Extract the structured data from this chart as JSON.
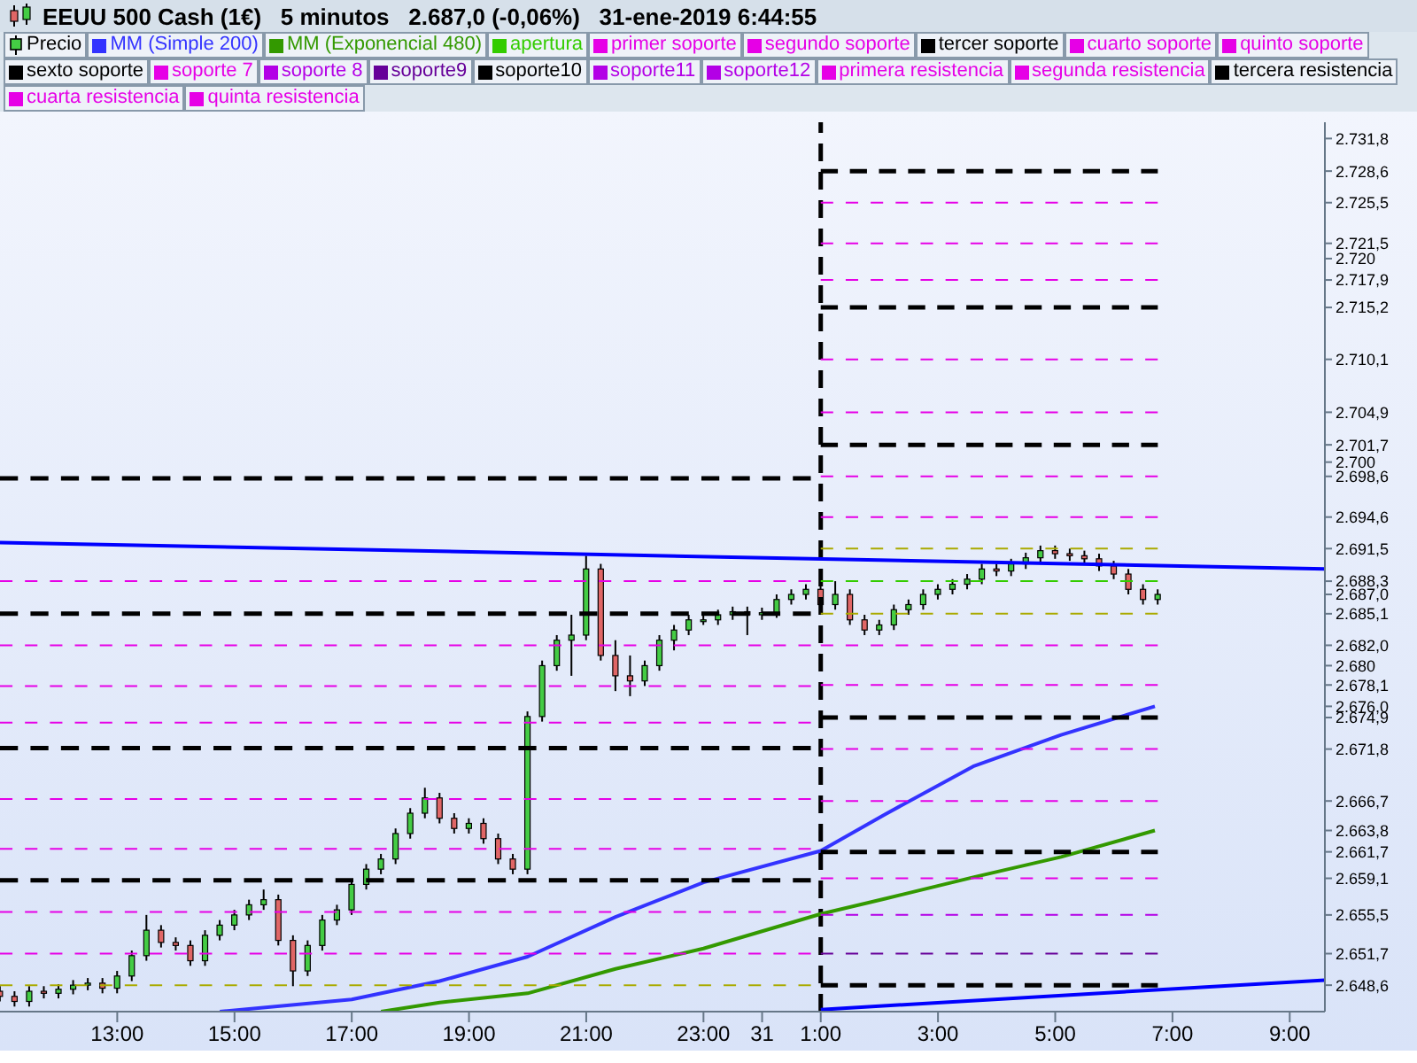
{
  "chart_data": {
    "type": "candlestick",
    "title": "EEUU 500 Cash (1€)   5 minutos   2.687,0 (-0,06%)   31-ene-2019 6:44:55",
    "xlim": [
      "2019-01-30T11:00",
      "2019-01-31T09:36"
    ],
    "xticks": [
      {
        "value": "2019-01-30T13:00",
        "label": "13:00"
      },
      {
        "value": "2019-01-30T15:00",
        "label": "15:00"
      },
      {
        "value": "2019-01-30T17:00",
        "label": "17:00"
      },
      {
        "value": "2019-01-30T19:00",
        "label": "19:00"
      },
      {
        "value": "2019-01-30T21:00",
        "label": "21:00"
      },
      {
        "value": "2019-01-30T23:00",
        "label": "23:00"
      },
      {
        "value": "2019-01-31T00:00",
        "label": "31"
      },
      {
        "value": "2019-01-31T01:00",
        "label": "1:00"
      },
      {
        "value": "2019-01-31T03:00",
        "label": "3:00"
      },
      {
        "value": "2019-01-31T05:00",
        "label": "5:00"
      },
      {
        "value": "2019-01-31T07:00",
        "label": "7:00"
      },
      {
        "value": "2019-01-31T09:00",
        "label": "9:00"
      }
    ],
    "ylim": [
      2646.0,
      2733.4
    ],
    "yticks": [
      {
        "value": 2731.8,
        "label": "2.731,8"
      },
      {
        "value": 2728.6,
        "label": "2.728,6"
      },
      {
        "value": 2725.5,
        "label": "2.725,5"
      },
      {
        "value": 2721.5,
        "label": "2.721,5"
      },
      {
        "value": 2720,
        "label": "2.720"
      },
      {
        "value": 2717.9,
        "label": "2.717,9"
      },
      {
        "value": 2715.2,
        "label": "2.715,2"
      },
      {
        "value": 2710.1,
        "label": "2.710,1"
      },
      {
        "value": 2704.9,
        "label": "2.704,9"
      },
      {
        "value": 2701.7,
        "label": "2.701,7"
      },
      {
        "value": 2700,
        "label": "2.700"
      },
      {
        "value": 2698.6,
        "label": "2.698,6"
      },
      {
        "value": 2694.6,
        "label": "2.694,6"
      },
      {
        "value": 2691.5,
        "label": "2.691,5"
      },
      {
        "value": 2688.3,
        "label": "2.688,3"
      },
      {
        "value": 2687.0,
        "label": "2.687,0"
      },
      {
        "value": 2685.1,
        "label": "2.685,1"
      },
      {
        "value": 2682.0,
        "label": "2.682,0"
      },
      {
        "value": 2680,
        "label": "2.680"
      },
      {
        "value": 2678.1,
        "label": "2.678,1"
      },
      {
        "value": 2676.0,
        "label": "2.676,0"
      },
      {
        "value": 2674.9,
        "label": "2.674,9"
      },
      {
        "value": 2671.8,
        "label": "2.671,8"
      },
      {
        "value": 2666.7,
        "label": "2.666,7"
      },
      {
        "value": 2663.8,
        "label": "2.663,8"
      },
      {
        "value": 2661.7,
        "label": "2.661,7"
      },
      {
        "value": 2659.1,
        "label": "2.659,1"
      },
      {
        "value": 2655.5,
        "label": "2.655,5"
      },
      {
        "value": 2651.7,
        "label": "2.651,7"
      },
      {
        "value": 2648.6,
        "label": "2.648,6"
      }
    ],
    "legend": "top",
    "ref_lines": [
      {
        "axis": "x",
        "value": "2019-01-31T01:00",
        "color": "#000000",
        "line_style": "dashed"
      }
    ],
    "series": [
      {
        "name": "Precio",
        "color": "#000000",
        "x": [
          "2019-01-30T11:00",
          "2019-01-30T11:15",
          "2019-01-30T11:30",
          "2019-01-30T11:45",
          "2019-01-30T12:00",
          "2019-01-30T12:15",
          "2019-01-30T12:30",
          "2019-01-30T12:45",
          "2019-01-30T13:00",
          "2019-01-30T13:15",
          "2019-01-30T13:30",
          "2019-01-30T13:45",
          "2019-01-30T14:00",
          "2019-01-30T14:15",
          "2019-01-30T14:30",
          "2019-01-30T14:45",
          "2019-01-30T15:00",
          "2019-01-30T15:15",
          "2019-01-30T15:30",
          "2019-01-30T15:45",
          "2019-01-30T16:00",
          "2019-01-30T16:15",
          "2019-01-30T16:30",
          "2019-01-30T16:45",
          "2019-01-30T17:00",
          "2019-01-30T17:15",
          "2019-01-30T17:30",
          "2019-01-30T17:45",
          "2019-01-30T18:00",
          "2019-01-30T18:15",
          "2019-01-30T18:30",
          "2019-01-30T18:45",
          "2019-01-30T19:00",
          "2019-01-30T19:15",
          "2019-01-30T19:30",
          "2019-01-30T19:45",
          "2019-01-30T20:00",
          "2019-01-30T20:15",
          "2019-01-30T20:30",
          "2019-01-30T20:45",
          "2019-01-30T21:00",
          "2019-01-30T21:15",
          "2019-01-30T21:30",
          "2019-01-30T21:45",
          "2019-01-30T22:00",
          "2019-01-30T22:15",
          "2019-01-30T22:30",
          "2019-01-30T22:45",
          "2019-01-30T23:00",
          "2019-01-30T23:15",
          "2019-01-30T23:30",
          "2019-01-30T23:45",
          "2019-01-31T00:00",
          "2019-01-31T00:15",
          "2019-01-31T00:30",
          "2019-01-31T00:45",
          "2019-01-31T01:00",
          "2019-01-31T01:15",
          "2019-01-31T01:30",
          "2019-01-31T01:45",
          "2019-01-31T02:00",
          "2019-01-31T02:15",
          "2019-01-31T02:30",
          "2019-01-31T02:45",
          "2019-01-31T03:00",
          "2019-01-31T03:15",
          "2019-01-31T03:30",
          "2019-01-31T03:45",
          "2019-01-31T04:00",
          "2019-01-31T04:15",
          "2019-01-31T04:30",
          "2019-01-31T04:45",
          "2019-01-31T05:00",
          "2019-01-31T05:15",
          "2019-01-31T05:30",
          "2019-01-31T05:45",
          "2019-01-31T06:00",
          "2019-01-31T06:15",
          "2019-01-31T06:30",
          "2019-01-31T06:45"
        ],
        "ohlc": [
          [
            2648.0,
            2648.5,
            2647.0,
            2647.5
          ],
          [
            2647.5,
            2648.0,
            2646.5,
            2647.0
          ],
          [
            2647.0,
            2648.5,
            2646.5,
            2648.0
          ],
          [
            2648.0,
            2648.5,
            2647.3,
            2647.8
          ],
          [
            2647.8,
            2648.7,
            2647.3,
            2648.2
          ],
          [
            2648.2,
            2649.1,
            2647.7,
            2648.6
          ],
          [
            2648.6,
            2649.3,
            2648.1,
            2648.8
          ],
          [
            2648.8,
            2649.3,
            2647.8,
            2648.3
          ],
          [
            2648.3,
            2650.0,
            2647.8,
            2649.5
          ],
          [
            2649.5,
            2652.0,
            2649.0,
            2651.5
          ],
          [
            2651.5,
            2655.5,
            2651.0,
            2654.0
          ],
          [
            2654.0,
            2654.5,
            2652.3,
            2652.8
          ],
          [
            2652.8,
            2653.3,
            2652.0,
            2652.5
          ],
          [
            2652.5,
            2653.0,
            2650.5,
            2651.0
          ],
          [
            2651.0,
            2654.0,
            2650.5,
            2653.5
          ],
          [
            2653.5,
            2655.0,
            2653.0,
            2654.5
          ],
          [
            2654.5,
            2656.0,
            2654.0,
            2655.5
          ],
          [
            2655.5,
            2657.0,
            2655.0,
            2656.5
          ],
          [
            2656.5,
            2658.0,
            2656.0,
            2657.0
          ],
          [
            2657.0,
            2657.5,
            2652.5,
            2653.0
          ],
          [
            2653.0,
            2653.5,
            2648.5,
            2650.0
          ],
          [
            2650.0,
            2653.0,
            2649.5,
            2652.5
          ],
          [
            2652.5,
            2655.5,
            2652.0,
            2655.0
          ],
          [
            2655.0,
            2656.5,
            2654.5,
            2656.0
          ],
          [
            2656.0,
            2659.0,
            2655.5,
            2658.5
          ],
          [
            2658.5,
            2660.5,
            2658.0,
            2660.0
          ],
          [
            2660.0,
            2661.5,
            2659.5,
            2661.0
          ],
          [
            2661.0,
            2664.0,
            2660.5,
            2663.5
          ],
          [
            2663.5,
            2666.0,
            2663.0,
            2665.5
          ],
          [
            2665.5,
            2668.0,
            2665.0,
            2667.0
          ],
          [
            2667.0,
            2667.5,
            2664.5,
            2665.0
          ],
          [
            2665.0,
            2665.5,
            2663.5,
            2664.0
          ],
          [
            2664.0,
            2665.0,
            2663.5,
            2664.5
          ],
          [
            2664.5,
            2665.0,
            2662.5,
            2663.0
          ],
          [
            2663.0,
            2663.5,
            2660.5,
            2661.0
          ],
          [
            2661.0,
            2661.5,
            2659.5,
            2660.0
          ],
          [
            2660.0,
            2675.5,
            2659.5,
            2675.0
          ],
          [
            2675.0,
            2680.5,
            2674.5,
            2680.0
          ],
          [
            2680.0,
            2683.0,
            2679.5,
            2682.5
          ],
          [
            2682.5,
            2685.0,
            2679.0,
            2683.0
          ],
          [
            2683.0,
            2690.8,
            2682.5,
            2689.5
          ],
          [
            2689.5,
            2690.0,
            2680.5,
            2681.0
          ],
          [
            2681.0,
            2682.5,
            2677.5,
            2679.0
          ],
          [
            2679.0,
            2681.0,
            2677.0,
            2678.5
          ],
          [
            2678.5,
            2680.5,
            2678.0,
            2680.0
          ],
          [
            2680.0,
            2683.0,
            2679.5,
            2682.5
          ],
          [
            2682.5,
            2684.0,
            2681.5,
            2683.5
          ],
          [
            2683.5,
            2685.0,
            2683.0,
            2684.5
          ],
          [
            2684.5,
            2685.0,
            2684.0,
            2684.5
          ],
          [
            2684.5,
            2685.5,
            2684.0,
            2685.0
          ],
          [
            2685.0,
            2685.8,
            2684.5,
            2685.3
          ],
          [
            2685.3,
            2685.8,
            2683.0,
            2685.0
          ],
          [
            2685.0,
            2685.7,
            2684.5,
            2685.2
          ],
          [
            2685.2,
            2687.0,
            2684.7,
            2686.5
          ],
          [
            2686.5,
            2687.5,
            2686.0,
            2687.0
          ],
          [
            2687.0,
            2688.0,
            2686.5,
            2687.5
          ],
          [
            2687.5,
            2688.0,
            2685.5,
            2686.0
          ],
          [
            2686.0,
            2688.3,
            2685.5,
            2687.0
          ],
          [
            2687.0,
            2687.5,
            2684.0,
            2684.5
          ],
          [
            2684.5,
            2685.0,
            2683.0,
            2683.5
          ],
          [
            2683.5,
            2684.5,
            2683.0,
            2684.0
          ],
          [
            2684.0,
            2686.0,
            2683.5,
            2685.5
          ],
          [
            2685.5,
            2686.5,
            2685.0,
            2686.0
          ],
          [
            2686.0,
            2687.5,
            2685.5,
            2687.0
          ],
          [
            2687.0,
            2688.0,
            2686.5,
            2687.5
          ],
          [
            2687.5,
            2688.5,
            2687.0,
            2688.0
          ],
          [
            2688.0,
            2689.0,
            2687.5,
            2688.5
          ],
          [
            2688.5,
            2690.0,
            2688.0,
            2689.5
          ],
          [
            2689.5,
            2690.0,
            2688.8,
            2689.3
          ],
          [
            2689.3,
            2690.5,
            2688.8,
            2690.0
          ],
          [
            2690.0,
            2691.1,
            2689.5,
            2690.6
          ],
          [
            2690.6,
            2691.8,
            2690.1,
            2691.3
          ],
          [
            2691.3,
            2691.8,
            2690.5,
            2691.0
          ],
          [
            2691.0,
            2691.5,
            2690.3,
            2690.8
          ],
          [
            2690.8,
            2691.3,
            2690.0,
            2690.5
          ],
          [
            2690.5,
            2691.0,
            2689.3,
            2689.8
          ],
          [
            2689.8,
            2690.3,
            2688.5,
            2689.0
          ],
          [
            2689.0,
            2689.5,
            2687.0,
            2687.5
          ],
          [
            2687.5,
            2688.0,
            2686.0,
            2686.5
          ],
          [
            2686.5,
            2687.5,
            2686.0,
            2687.0
          ]
        ]
      },
      {
        "name": "MM (Simple 200)",
        "type": "line",
        "color": "#3333ff",
        "x": [
          "2019-01-30T14:45",
          "2019-01-30T17:00",
          "2019-01-30T18:30",
          "2019-01-30T20:00",
          "2019-01-30T21:30",
          "2019-01-30T23:00",
          "2019-01-31T01:00",
          "2019-01-31T02:06",
          "2019-01-31T03:36",
          "2019-01-31T05:06",
          "2019-01-31T06:42"
        ],
        "values": [
          2646.0,
          2647.2,
          2649.0,
          2651.4,
          2655.3,
          2658.7,
          2661.8,
          2665.4,
          2670.1,
          2673.2,
          2676.0
        ]
      },
      {
        "name": "MM (Exponencial 480)",
        "type": "line",
        "color": "#339900",
        "x": [
          "2019-01-30T17:30",
          "2019-01-30T18:30",
          "2019-01-30T20:00",
          "2019-01-30T21:30",
          "2019-01-30T23:00",
          "2019-01-31T01:00",
          "2019-01-31T02:06",
          "2019-01-31T03:36",
          "2019-01-31T05:06",
          "2019-01-31T06:42"
        ],
        "values": [
          2646.0,
          2646.9,
          2647.8,
          2650.2,
          2652.2,
          2655.6,
          2657.1,
          2659.2,
          2661.2,
          2663.8
        ]
      },
      {
        "name": "apertura",
        "type": "line",
        "color": "#33cc00",
        "line_style": "dashed",
        "x": [
          "2019-01-31T01:00",
          "2019-01-31T06:45"
        ],
        "values": [
          2688.3,
          2688.3
        ]
      },
      {
        "name": "primer soporte",
        "type": "line",
        "color": "#e600e6",
        "line_style": "dashed",
        "x": [
          "2019-01-31T01:00",
          "2019-01-31T06:45"
        ],
        "values": [
          2682.0,
          2682.0
        ]
      },
      {
        "name": "segundo soporte",
        "type": "line",
        "color": "#e600e6",
        "line_style": "dashed",
        "x": [
          "2019-01-31T01:00",
          "2019-01-31T06:45"
        ],
        "values": [
          2678.1,
          2678.1
        ]
      },
      {
        "name": "tercer soporte",
        "type": "line",
        "color": "#000000",
        "line_style": "dashed",
        "x": [
          "2019-01-31T01:00",
          "2019-01-31T06:45"
        ],
        "values": [
          2674.9,
          2674.9
        ]
      },
      {
        "name": "cuarto soporte",
        "type": "line",
        "color": "#e600e6",
        "line_style": "dashed",
        "x": [
          "2019-01-31T01:00",
          "2019-01-31T06:45"
        ],
        "values": [
          2671.8,
          2671.8
        ]
      },
      {
        "name": "quinto soporte",
        "type": "line",
        "color": "#e600e6",
        "line_style": "dashed",
        "x": [
          "2019-01-31T01:00",
          "2019-01-31T06:45"
        ],
        "values": [
          2666.7,
          2666.7
        ]
      },
      {
        "name": "sexto soporte",
        "type": "line",
        "color": "#000000",
        "line_style": "dashed",
        "x": [
          "2019-01-31T01:00",
          "2019-01-31T06:45"
        ],
        "values": [
          2661.7,
          2661.7
        ]
      },
      {
        "name": "soporte 7",
        "type": "line",
        "color": "#e600e6",
        "line_style": "dashed",
        "x": [
          "2019-01-31T01:00",
          "2019-01-31T06:45"
        ],
        "values": [
          2659.1,
          2659.1
        ]
      },
      {
        "name": "soporte 8",
        "type": "line",
        "color": "#b300e6",
        "line_style": "dashed",
        "x": [
          "2019-01-31T01:00",
          "2019-01-31T06:45"
        ],
        "values": [
          2655.5,
          2655.5
        ]
      },
      {
        "name": "soporte9",
        "type": "line",
        "color": "#660099",
        "line_style": "dashed",
        "x": [
          "2019-01-31T01:00",
          "2019-01-31T06:45"
        ],
        "values": [
          2651.7,
          2651.7
        ]
      },
      {
        "name": "soporte10",
        "type": "line",
        "color": "#000000",
        "line_style": "dashed",
        "x": [
          "2019-01-31T01:00",
          "2019-01-31T06:45"
        ],
        "values": [
          2648.6,
          2648.6
        ]
      },
      {
        "name": "soporte11",
        "type": "line",
        "color": "#b300e6",
        "line_style": "dashed"
      },
      {
        "name": "soporte12",
        "type": "line",
        "color": "#b300e6",
        "line_style": "dashed"
      },
      {
        "name": "primera resistencia",
        "type": "line",
        "color": "#e600e6",
        "line_style": "dashed",
        "x": [
          "2019-01-31T01:00",
          "2019-01-31T06:45"
        ],
        "values": [
          2694.6,
          2694.6
        ]
      },
      {
        "name": "segunda resistencia",
        "type": "line",
        "color": "#e600e6",
        "line_style": "dashed",
        "x": [
          "2019-01-31T01:00",
          "2019-01-31T06:45"
        ],
        "values": [
          2698.6,
          2698.6
        ]
      },
      {
        "name": "tercera resistencia",
        "type": "line",
        "color": "#000000",
        "line_style": "dashed",
        "x": [
          "2019-01-31T01:00",
          "2019-01-31T06:45"
        ],
        "values": [
          2701.7,
          2701.7
        ]
      },
      {
        "name": "cuarta resistencia",
        "type": "line",
        "color": "#e600e6",
        "line_style": "dashed",
        "x": [
          "2019-01-31T01:00",
          "2019-01-31T06:45"
        ],
        "values": [
          2704.9,
          2704.9
        ]
      },
      {
        "name": "quinta resistencia",
        "type": "line",
        "color": "#e600e6",
        "line_style": "dashed",
        "x": [
          "2019-01-31T01:00",
          "2019-01-31T06:45"
        ],
        "values": [
          2710.1,
          2710.1
        ]
      },
      {
        "type": "line",
        "color": "#000000",
        "line_style": "dashed",
        "x": [
          "2019-01-31T01:00",
          "2019-01-31T06:45"
        ],
        "values": [
          2715.2,
          2715.2
        ]
      },
      {
        "type": "line",
        "color": "#e600e6",
        "line_style": "dashed",
        "x": [
          "2019-01-31T01:00",
          "2019-01-31T06:45"
        ],
        "values": [
          2717.9,
          2717.9
        ]
      },
      {
        "type": "line",
        "color": "#e600e6",
        "line_style": "dashed",
        "x": [
          "2019-01-31T01:00",
          "2019-01-31T06:45"
        ],
        "values": [
          2721.5,
          2721.5
        ]
      },
      {
        "type": "line",
        "color": "#e600e6",
        "line_style": "dashed",
        "x": [
          "2019-01-31T01:00",
          "2019-01-31T06:45"
        ],
        "values": [
          2725.5,
          2725.5
        ]
      },
      {
        "type": "line",
        "color": "#000000",
        "line_style": "dashed",
        "x": [
          "2019-01-31T01:00",
          "2019-01-31T06:45"
        ],
        "values": [
          2728.6,
          2728.6
        ]
      },
      {
        "type": "line",
        "color": "#aaaa00",
        "line_style": "dashed",
        "x": [
          "2019-01-31T01:00",
          "2019-01-31T06:45"
        ],
        "values": [
          2691.5,
          2691.5
        ]
      },
      {
        "type": "line",
        "color": "#aaaa00",
        "line_style": "dashed",
        "x": [
          "2019-01-31T01:00",
          "2019-01-31T06:45"
        ],
        "values": [
          2685.1,
          2685.1
        ]
      },
      {
        "type": "line",
        "color": "#000000",
        "line_style": "dashed",
        "x": [
          "2019-01-30T11:00",
          "2019-01-31T00:50"
        ],
        "values": [
          2698.4,
          2698.4
        ]
      },
      {
        "type": "line",
        "color": "#e600e6",
        "line_style": "dashed",
        "x": [
          "2019-01-30T11:00",
          "2019-01-31T00:50"
        ],
        "values": [
          2688.3,
          2688.3
        ]
      },
      {
        "type": "line",
        "color": "#000000",
        "line_style": "dashed",
        "x": [
          "2019-01-30T11:00",
          "2019-01-31T00:50"
        ],
        "values": [
          2685.1,
          2685.1
        ]
      },
      {
        "type": "line",
        "color": "#e600e6",
        "line_style": "dashed",
        "x": [
          "2019-01-30T11:00",
          "2019-01-31T00:50"
        ],
        "values": [
          2682.0,
          2682.0
        ]
      },
      {
        "type": "line",
        "color": "#e600e6",
        "line_style": "dashed",
        "x": [
          "2019-01-30T11:00",
          "2019-01-31T00:50"
        ],
        "values": [
          2678.0,
          2678.0
        ]
      },
      {
        "type": "line",
        "color": "#e600e6",
        "line_style": "dashed",
        "x": [
          "2019-01-30T11:00",
          "2019-01-31T00:50"
        ],
        "values": [
          2674.4,
          2674.4
        ]
      },
      {
        "type": "line",
        "color": "#000000",
        "line_style": "dashed",
        "x": [
          "2019-01-30T11:00",
          "2019-01-31T00:50"
        ],
        "values": [
          2671.9,
          2671.9
        ]
      },
      {
        "type": "line",
        "color": "#e600e6",
        "line_style": "dashed",
        "x": [
          "2019-01-30T11:00",
          "2019-01-31T00:50"
        ],
        "values": [
          2666.9,
          2666.9
        ]
      },
      {
        "type": "line",
        "color": "#e600e6",
        "line_style": "dashed",
        "x": [
          "2019-01-30T11:00",
          "2019-01-31T00:50"
        ],
        "values": [
          2662.0,
          2662.0
        ]
      },
      {
        "type": "line",
        "color": "#000000",
        "line_style": "dashed",
        "x": [
          "2019-01-30T11:00",
          "2019-01-31T00:50"
        ],
        "values": [
          2658.9,
          2658.9
        ]
      },
      {
        "type": "line",
        "color": "#e600e6",
        "line_style": "dashed",
        "x": [
          "2019-01-30T11:00",
          "2019-01-31T00:50"
        ],
        "values": [
          2655.8,
          2655.8
        ]
      },
      {
        "type": "line",
        "color": "#e600e6",
        "line_style": "dashed",
        "x": [
          "2019-01-30T11:00",
          "2019-01-31T00:50"
        ],
        "values": [
          2651.7,
          2651.7
        ]
      },
      {
        "type": "line",
        "color": "#aaaa00",
        "line_style": "dashed",
        "x": [
          "2019-01-30T11:00",
          "2019-01-31T00:50"
        ],
        "values": [
          2648.6,
          2648.6
        ]
      },
      {
        "type": "line",
        "color": "#0000ff",
        "x": [
          "2019-01-30T11:00",
          "2019-01-31T09:36"
        ],
        "values": [
          2692.1,
          2689.5
        ]
      },
      {
        "type": "line",
        "color": "#0000ff",
        "x": [
          "2019-01-31T01:00",
          "2019-01-31T09:36"
        ],
        "values": [
          2646.2,
          2649.1
        ]
      }
    ]
  }
}
